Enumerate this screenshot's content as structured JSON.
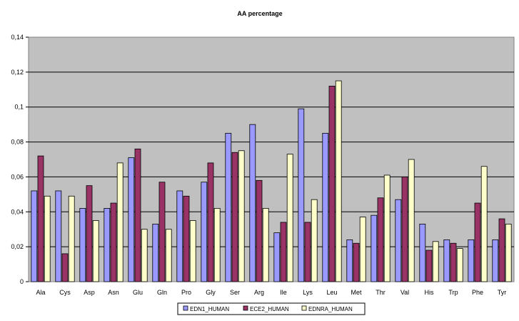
{
  "chart_data": {
    "type": "bar",
    "title": "AA percentage",
    "xlabel": "",
    "ylabel": "",
    "ylim": [
      0,
      0.14
    ],
    "yticks": [
      "0",
      "0,02",
      "0,04",
      "0,06",
      "0,08",
      "0,1",
      "0,12",
      "0,14"
    ],
    "grid": true,
    "legend_position": "bottom",
    "plot_background": "#c0c0c0",
    "categories": [
      "Ala",
      "Cys",
      "Asp",
      "Asn",
      "Glu",
      "Gln",
      "Pro",
      "Gly",
      "Ser",
      "Arg",
      "Ile",
      "Lys",
      "Leu",
      "Met",
      "Thr",
      "Val",
      "His",
      "Trp",
      "Phe",
      "Tyr"
    ],
    "series": [
      {
        "name": "EDN1_HUMAN",
        "color": "#9999ff",
        "values": [
          0.052,
          0.052,
          0.042,
          0.042,
          0.071,
          0.033,
          0.052,
          0.057,
          0.085,
          0.09,
          0.028,
          0.099,
          0.085,
          0.024,
          0.038,
          0.047,
          0.033,
          0.024,
          0.024,
          0.024
        ]
      },
      {
        "name": "ECE2_HUMAN",
        "color": "#993366",
        "values": [
          0.072,
          0.016,
          0.055,
          0.045,
          0.076,
          0.057,
          0.049,
          0.068,
          0.074,
          0.058,
          0.034,
          0.034,
          0.112,
          0.022,
          0.048,
          0.06,
          0.018,
          0.022,
          0.045,
          0.036
        ]
      },
      {
        "name": "EDNRA_HUMAN",
        "color": "#ffffcc",
        "values": [
          0.049,
          0.049,
          0.035,
          0.068,
          0.03,
          0.03,
          0.035,
          0.042,
          0.075,
          0.042,
          0.073,
          0.047,
          0.115,
          0.037,
          0.061,
          0.07,
          0.023,
          0.019,
          0.066,
          0.033
        ]
      }
    ]
  }
}
